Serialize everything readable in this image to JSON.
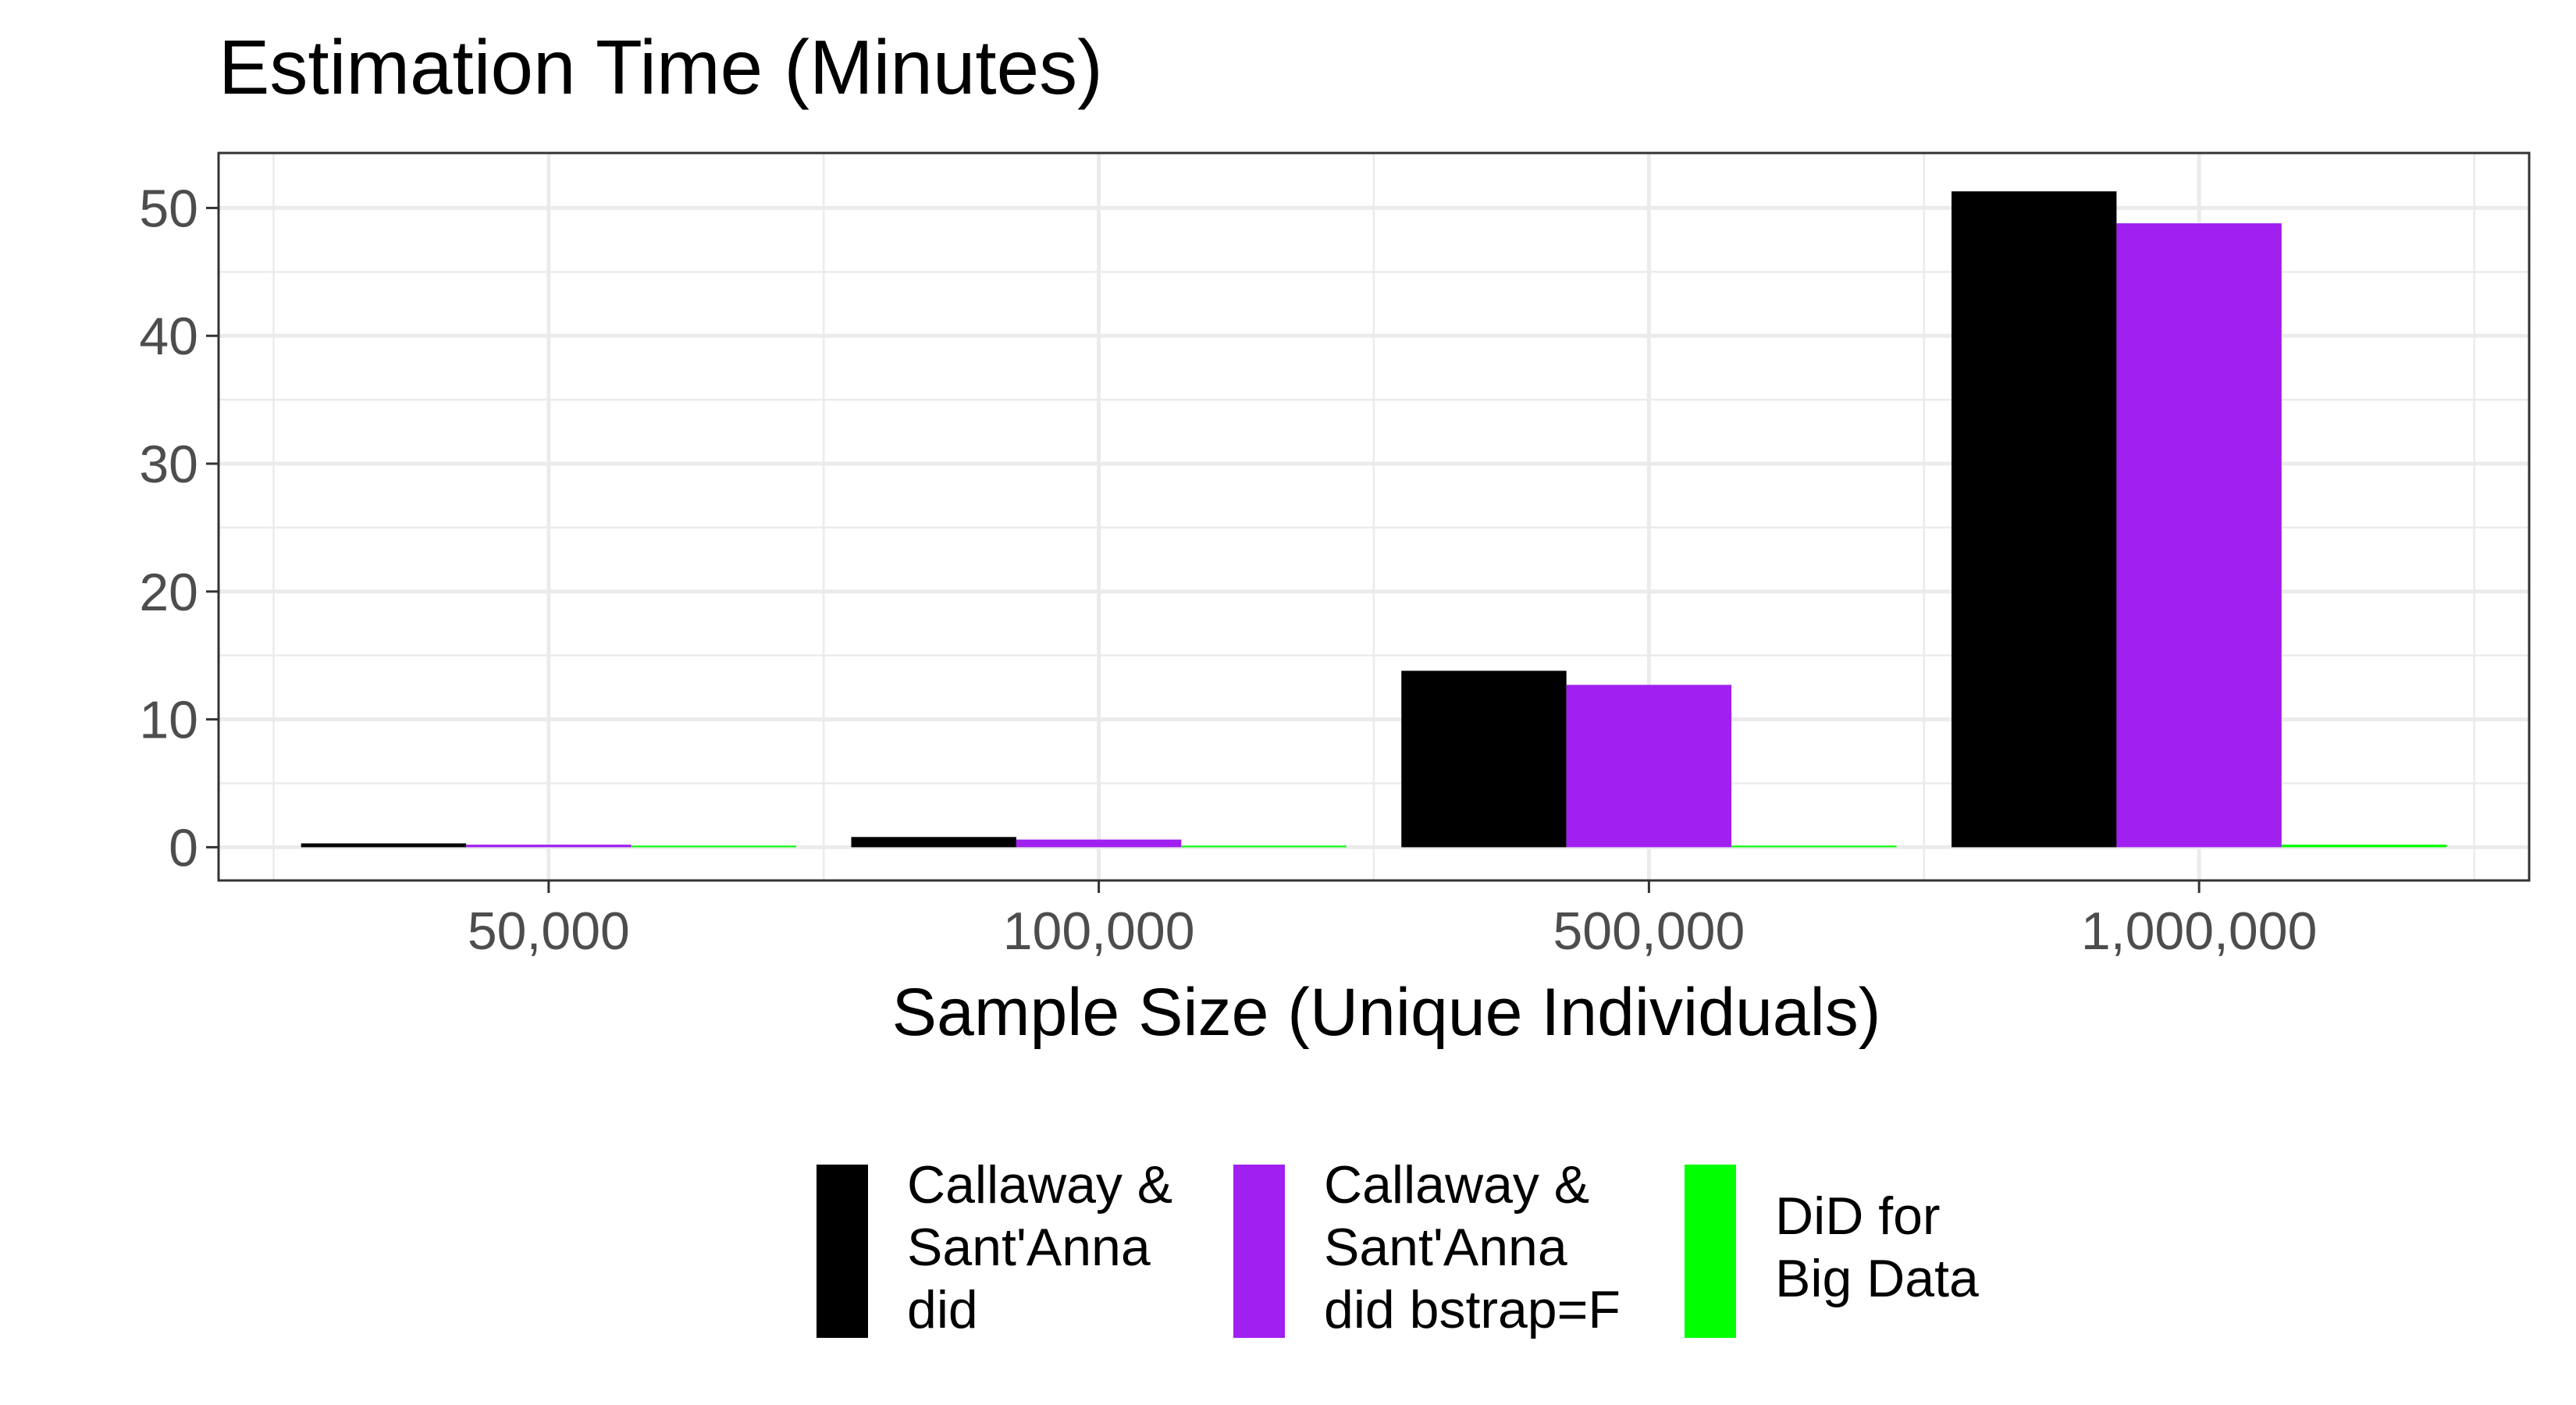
{
  "chart_data": {
    "type": "bar",
    "title": "Estimation Time (Minutes)",
    "xlabel": "Sample Size (Unique Individuals)",
    "ylabel": "",
    "categories": [
      "50,000",
      "100,000",
      "500,000",
      "1,000,000"
    ],
    "ylim": [
      -2.6,
      54.3
    ],
    "y_ticks": [
      0,
      10,
      20,
      30,
      40,
      50
    ],
    "grid": true,
    "legend_position": "bottom",
    "series": [
      {
        "name": "Callaway &\nSant'Anna\ndid",
        "color": "#000000",
        "values": [
          0.3,
          0.8,
          13.8,
          51.3
        ]
      },
      {
        "name": "Callaway &\nSant'Anna\ndid bstrap=F",
        "color": "#a020f0",
        "values": [
          0.2,
          0.6,
          12.7,
          48.8
        ]
      },
      {
        "name": "DiD for\nBig Data",
        "color": "#00ff00",
        "values": [
          0.05,
          0.05,
          0.1,
          0.2
        ]
      }
    ]
  }
}
